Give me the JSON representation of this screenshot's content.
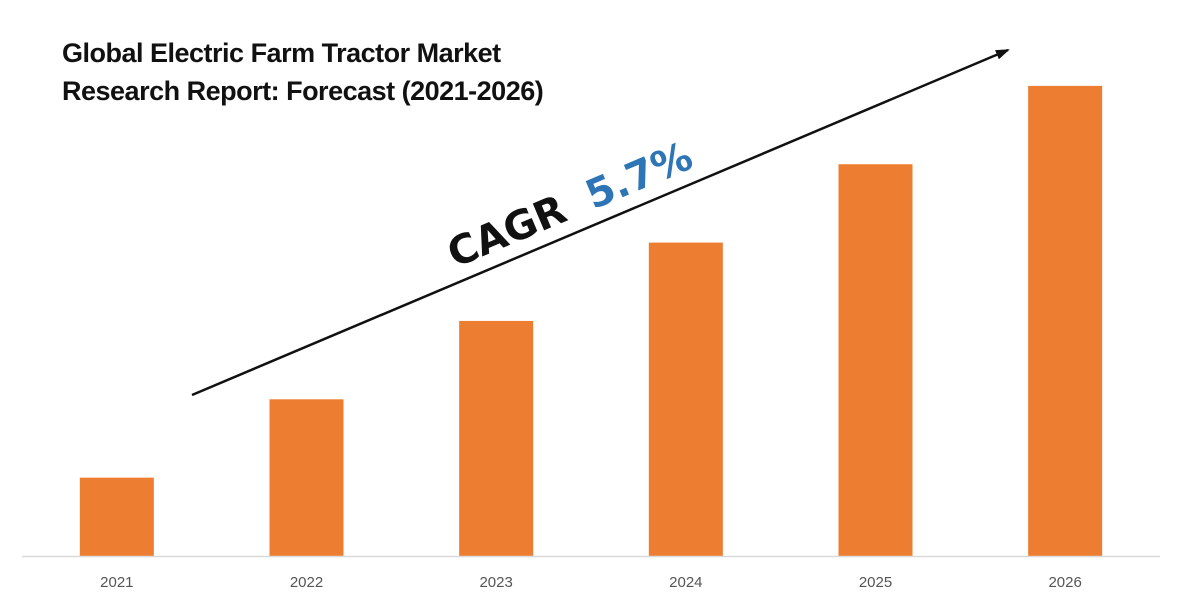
{
  "chart_data": {
    "type": "bar",
    "title_lines": [
      "Global Electric Farm Tractor Market",
      "Research Report: Forecast (2021-2026)"
    ],
    "categories": [
      "2021",
      "2022",
      "2023",
      "2024",
      "2025",
      "2026"
    ],
    "values": [
      16.6,
      33.2,
      49.8,
      66.4,
      83.0,
      99.6
    ],
    "ylim": [
      0,
      100
    ],
    "grid": false,
    "legend": "none",
    "annotation": {
      "prefix": "CAGR",
      "value": "5.7%",
      "arrow": "trend arrow rising left-to-right"
    },
    "colors": {
      "bar": "#ED7D31",
      "axis": "#D9D9D9",
      "title": "#111111",
      "cagr_prefix": "#111111",
      "cagr_value": "#2E75B6",
      "tick_label": "#555555",
      "arrow": "#111111"
    }
  }
}
